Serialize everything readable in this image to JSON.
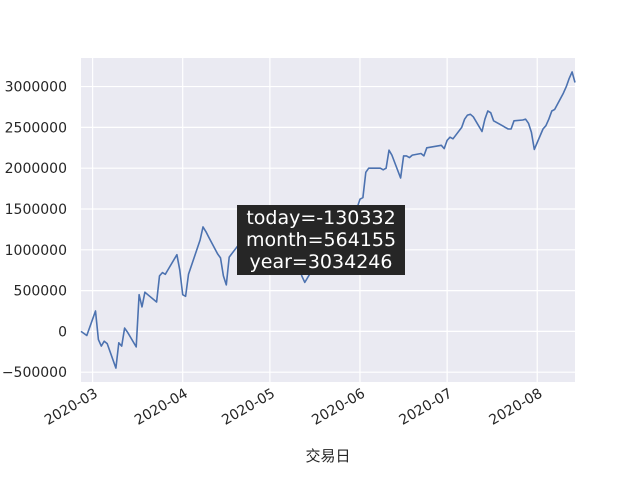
{
  "chart_data": {
    "type": "line",
    "xlabel": "交易日",
    "ylabel": "",
    "grid": true,
    "colors": {
      "background": "#eaeaf2",
      "grid": "#ffffff",
      "line": "#4c72b0",
      "tooltip_bg": "#262626",
      "tooltip_text": "#ffffff"
    },
    "xlim": [
      "2020-02-26",
      "2020-08-14"
    ],
    "ylim": [
      -620000,
      3350000
    ],
    "x_ticks": [
      "2020-03-01",
      "2020-04-01",
      "2020-05-01",
      "2020-06-01",
      "2020-07-01",
      "2020-08-01"
    ],
    "x_tick_labels": [
      "2020-03",
      "2020-04",
      "2020-05",
      "2020-06",
      "2020-07",
      "2020-08"
    ],
    "y_ticks": [
      -500000,
      0,
      500000,
      1000000,
      1500000,
      2000000,
      2500000,
      3000000
    ],
    "y_tick_labels": [
      "−500000",
      "0",
      "500000",
      "1000000",
      "1500000",
      "2000000",
      "2500000",
      "3000000"
    ],
    "annotation": {
      "lines": [
        "today=-130332",
        "month=564155",
        "year=3034246"
      ]
    },
    "series": [
      {
        "x": [
          "2020-02-26",
          "2020-02-28",
          "2020-03-02",
          "2020-03-03",
          "2020-03-04",
          "2020-03-05",
          "2020-03-06",
          "2020-03-09",
          "2020-03-10",
          "2020-03-11",
          "2020-03-12",
          "2020-03-13",
          "2020-03-16",
          "2020-03-17",
          "2020-03-18",
          "2020-03-19",
          "2020-03-20",
          "2020-03-23",
          "2020-03-24",
          "2020-03-25",
          "2020-03-26",
          "2020-03-27",
          "2020-03-30",
          "2020-03-31",
          "2020-04-01",
          "2020-04-02",
          "2020-04-03",
          "2020-04-07",
          "2020-04-08",
          "2020-04-09",
          "2020-04-10",
          "2020-04-13",
          "2020-04-14",
          "2020-04-15",
          "2020-04-16",
          "2020-04-17",
          "2020-04-20",
          "2020-04-21",
          "2020-04-22",
          "2020-04-23",
          "2020-04-24",
          "2020-04-27",
          "2020-04-28",
          "2020-04-29",
          "2020-04-30",
          "2020-05-06",
          "2020-05-07",
          "2020-05-08",
          "2020-05-11",
          "2020-05-12",
          "2020-05-13",
          "2020-05-14",
          "2020-05-15",
          "2020-05-18",
          "2020-05-19",
          "2020-05-20",
          "2020-05-21",
          "2020-05-22",
          "2020-05-25",
          "2020-05-26",
          "2020-05-27",
          "2020-05-28",
          "2020-05-29",
          "2020-06-01",
          "2020-06-02",
          "2020-06-03",
          "2020-06-04",
          "2020-06-05",
          "2020-06-08",
          "2020-06-09",
          "2020-06-10",
          "2020-06-11",
          "2020-06-12",
          "2020-06-15",
          "2020-06-16",
          "2020-06-17",
          "2020-06-18",
          "2020-06-19",
          "2020-06-22",
          "2020-06-23",
          "2020-06-24",
          "2020-06-29",
          "2020-06-30",
          "2020-07-01",
          "2020-07-02",
          "2020-07-03",
          "2020-07-06",
          "2020-07-07",
          "2020-07-08",
          "2020-07-09",
          "2020-07-10",
          "2020-07-13",
          "2020-07-14",
          "2020-07-15",
          "2020-07-16",
          "2020-07-17",
          "2020-07-20",
          "2020-07-21",
          "2020-07-22",
          "2020-07-23",
          "2020-07-24",
          "2020-07-27",
          "2020-07-28",
          "2020-07-29",
          "2020-07-30",
          "2020-07-31",
          "2020-08-03",
          "2020-08-04",
          "2020-08-05",
          "2020-08-06",
          "2020-08-07",
          "2020-08-10",
          "2020-08-11",
          "2020-08-12",
          "2020-08-13",
          "2020-08-14"
        ],
        "y": [
          0,
          -50000,
          250000,
          -100000,
          -180000,
          -120000,
          -150000,
          -450000,
          -140000,
          -180000,
          40000,
          -10000,
          -190000,
          450000,
          300000,
          480000,
          450000,
          360000,
          680000,
          720000,
          700000,
          760000,
          940000,
          750000,
          450000,
          430000,
          700000,
          1120000,
          1280000,
          1220000,
          1150000,
          950000,
          900000,
          680000,
          570000,
          910000,
          1050000,
          1060000,
          1000000,
          1050000,
          1250000,
          1240000,
          1280000,
          1200000,
          1150000,
          1050000,
          1000000,
          900000,
          800000,
          680000,
          600000,
          660000,
          720000,
          780000,
          820000,
          880000,
          940000,
          980000,
          1000000,
          1050000,
          1100000,
          1200000,
          1300000,
          1620000,
          1640000,
          1950000,
          2000000,
          2000000,
          2000000,
          1980000,
          2000000,
          2220000,
          2160000,
          1880000,
          2150000,
          2150000,
          2130000,
          2160000,
          2180000,
          2150000,
          2250000,
          2280000,
          2240000,
          2340000,
          2380000,
          2360000,
          2500000,
          2600000,
          2650000,
          2660000,
          2630000,
          2450000,
          2600000,
          2700000,
          2680000,
          2580000,
          2520000,
          2500000,
          2480000,
          2480000,
          2580000,
          2590000,
          2600000,
          2550000,
          2440000,
          2230000,
          2480000,
          2520000,
          2600000,
          2700000,
          2720000,
          2920000,
          3000000,
          3100000,
          3180000,
          3050000
        ]
      }
    ]
  }
}
